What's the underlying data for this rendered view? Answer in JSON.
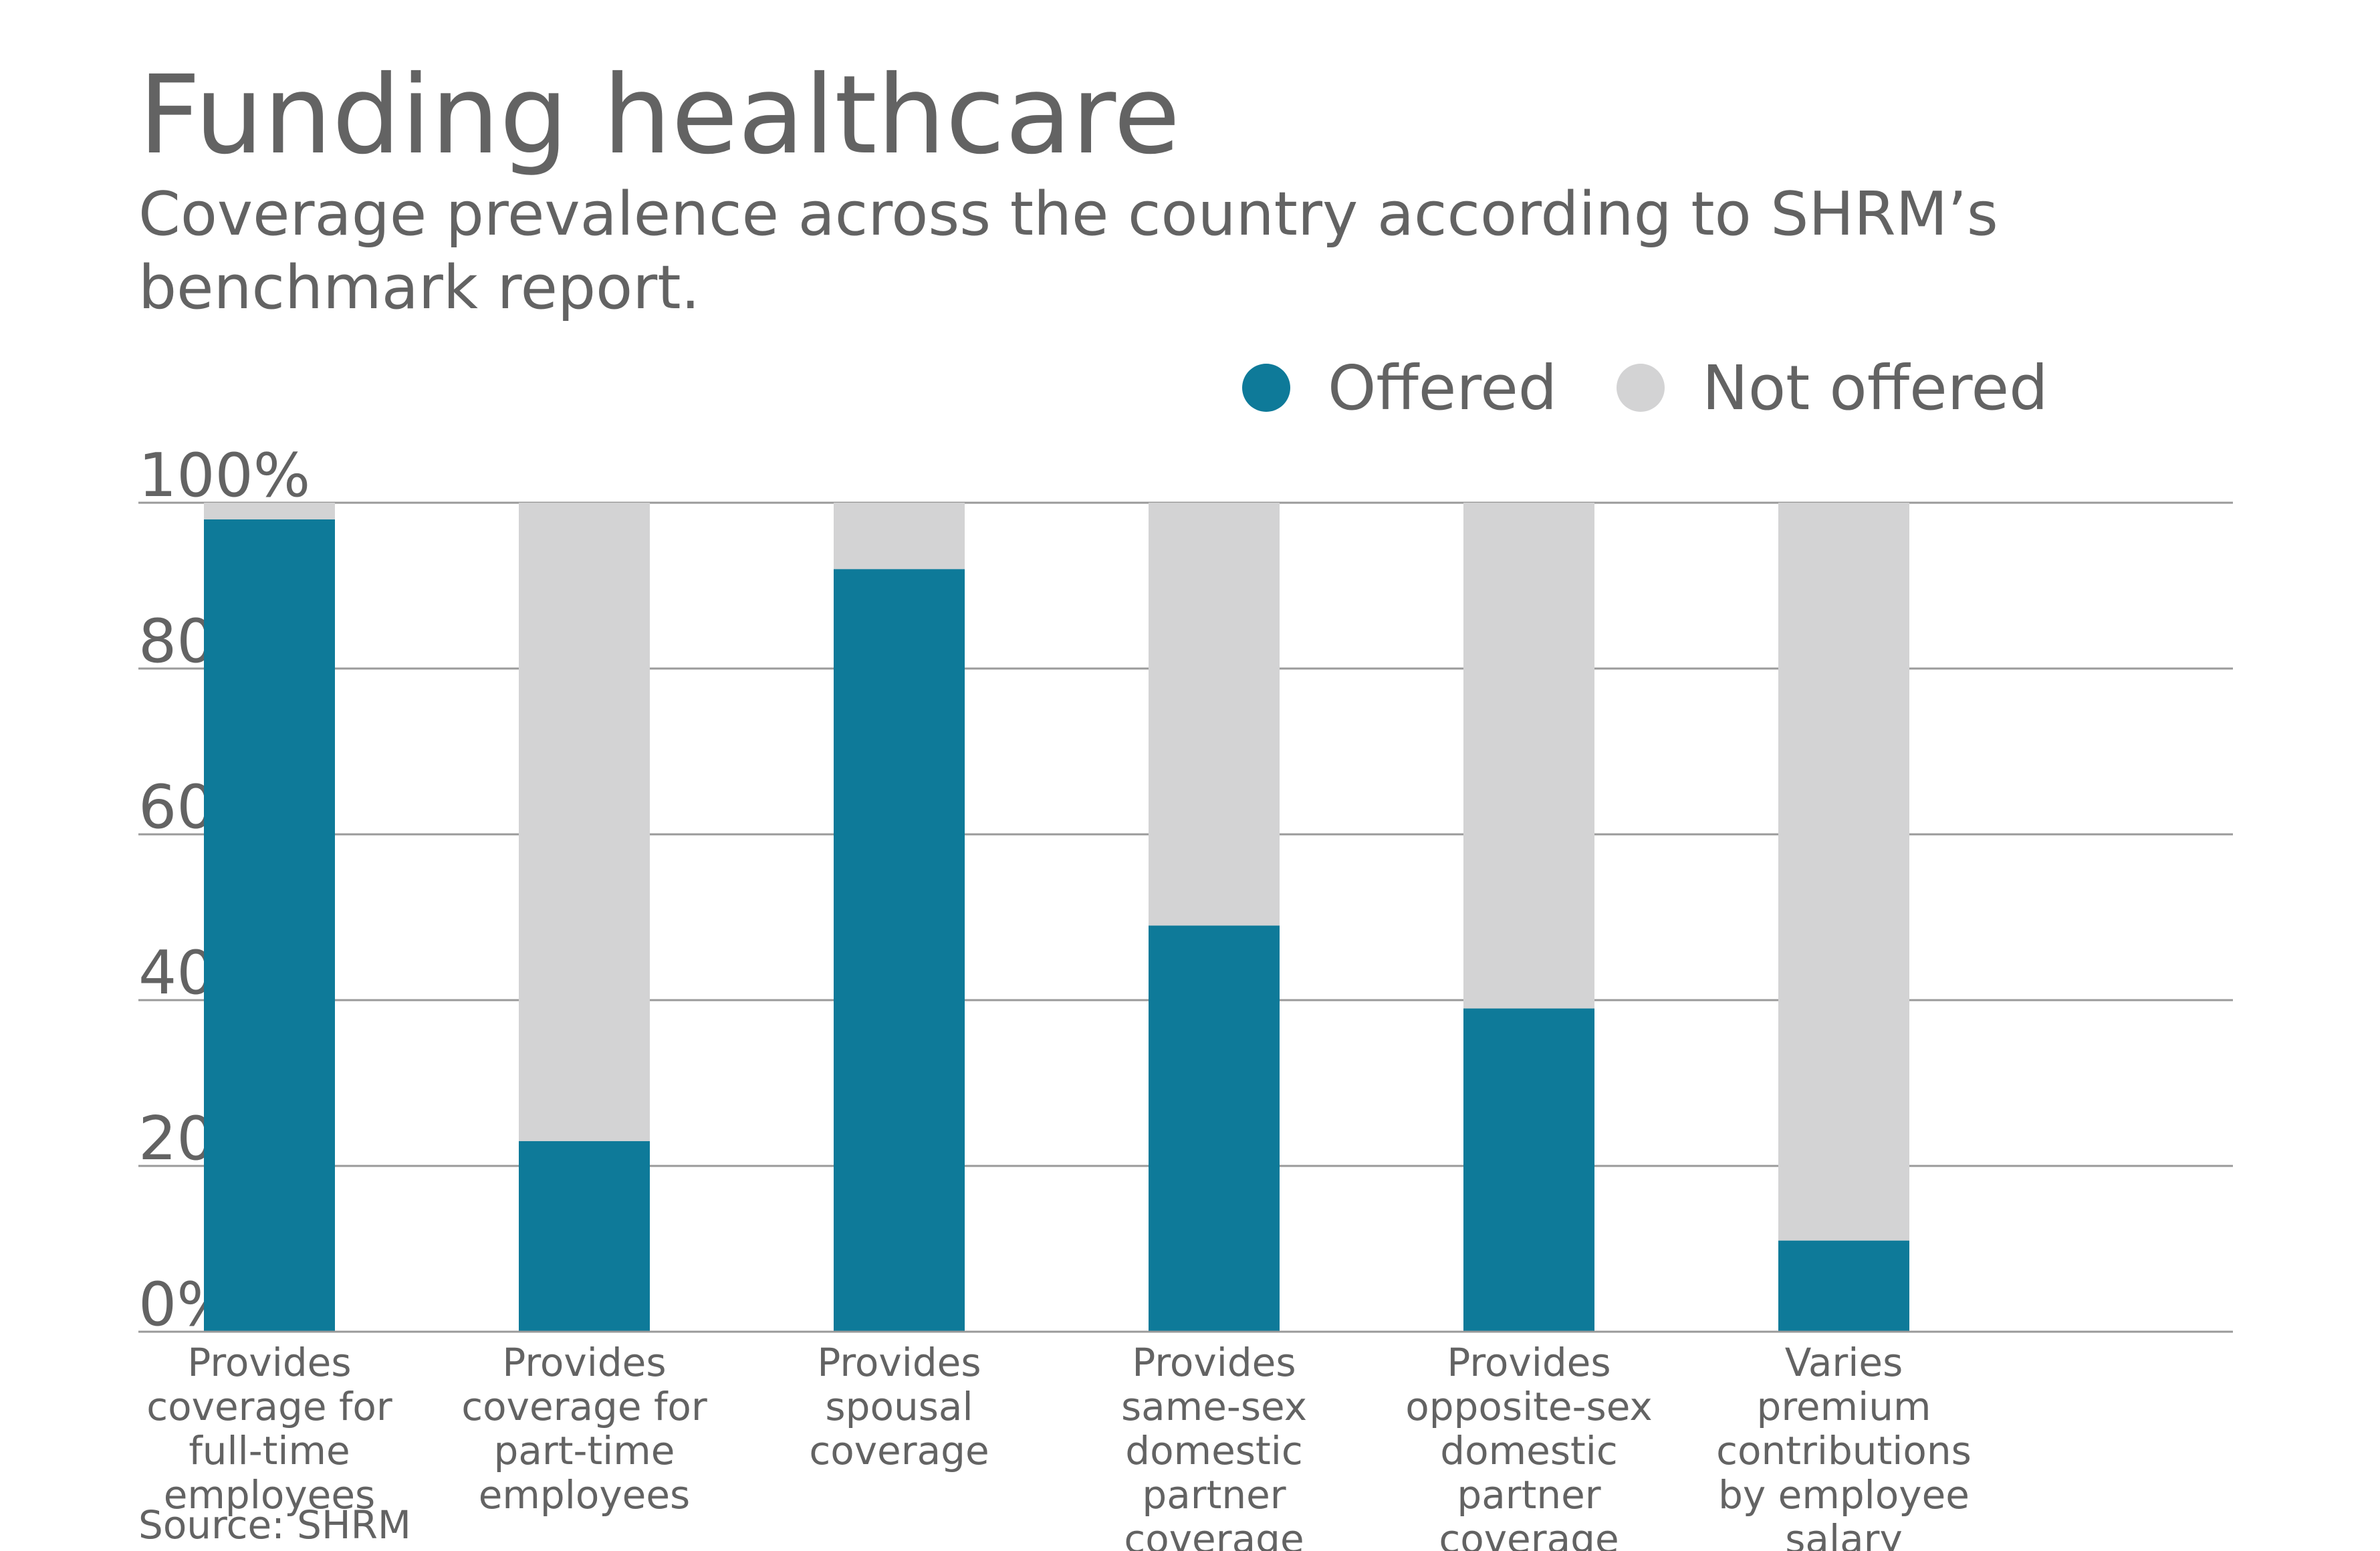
{
  "title": "Funding healthcare",
  "subtitle": "Coverage prevalence across the country according to SHRM’s benchmark report.",
  "source": "Source: SHRM",
  "colors": {
    "offered": "#0e7a99",
    "not_offered": "#d3d3d4",
    "grid": "#9a9a9a",
    "text": "#636363"
  },
  "legend": [
    {
      "label": "Offered",
      "color_key": "offered"
    },
    {
      "label": "Not offered",
      "color_key": "not_offered"
    }
  ],
  "chart_data": {
    "type": "bar",
    "stacked": true,
    "title": "Funding healthcare",
    "subtitle": "Coverage prevalence across the country according to SHRM’s benchmark report.",
    "xlabel": "",
    "ylabel": "",
    "ylim": [
      0,
      100
    ],
    "yticks": [
      0,
      20,
      40,
      60,
      80,
      100
    ],
    "ytick_labels": [
      "0%",
      "20%",
      "40%",
      "60%",
      "80%",
      "100%"
    ],
    "grid": true,
    "legend_position": "top-right",
    "categories": [
      [
        "Provides",
        "coverage for",
        "full-time",
        "employees"
      ],
      [
        "Provides",
        "coverage for",
        "part-time",
        "employees"
      ],
      [
        "Provides",
        "spousal",
        "coverage"
      ],
      [
        "Provides",
        "same-sex",
        "domestic",
        "partner",
        "coverage"
      ],
      [
        "Provides",
        "opposite-sex",
        "domestic",
        "partner",
        "coverage"
      ],
      [
        "Varies",
        "premium",
        "contributions",
        "by employee",
        "salary"
      ]
    ],
    "series": [
      {
        "name": "Offered",
        "values": [
          98,
          23,
          92,
          49,
          39,
          11
        ]
      },
      {
        "name": "Not offered",
        "values": [
          2,
          77,
          8,
          51,
          61,
          89
        ]
      }
    ]
  }
}
